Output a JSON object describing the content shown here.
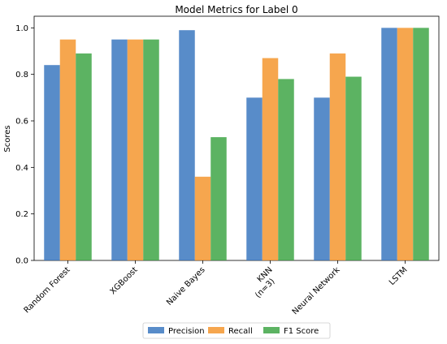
{
  "chart_data": {
    "type": "bar",
    "title": "Model Metrics for Label 0",
    "xlabel": "",
    "ylabel": "Scores",
    "categories": [
      "Random Forest",
      "XGBoost",
      "Naive Bayes",
      "KNN\n(n=3)",
      "Neural Network",
      "LSTM"
    ],
    "series": [
      {
        "name": "Precision",
        "color": "#3b78bf",
        "values": [
          0.84,
          0.95,
          0.99,
          0.7,
          0.7,
          1.0
        ]
      },
      {
        "name": "Recall",
        "color": "#f5962f",
        "values": [
          0.95,
          0.95,
          0.36,
          0.87,
          0.89,
          1.0
        ]
      },
      {
        "name": "F1 Score",
        "color": "#3fa646",
        "values": [
          0.89,
          0.95,
          0.53,
          0.78,
          0.79,
          1.0
        ]
      }
    ],
    "ylim": [
      0,
      1.05
    ],
    "yticks": [
      "0.0",
      "0.2",
      "0.4",
      "0.6",
      "0.8",
      "1.0"
    ],
    "grid": false,
    "legend_position": "bottom-center"
  }
}
